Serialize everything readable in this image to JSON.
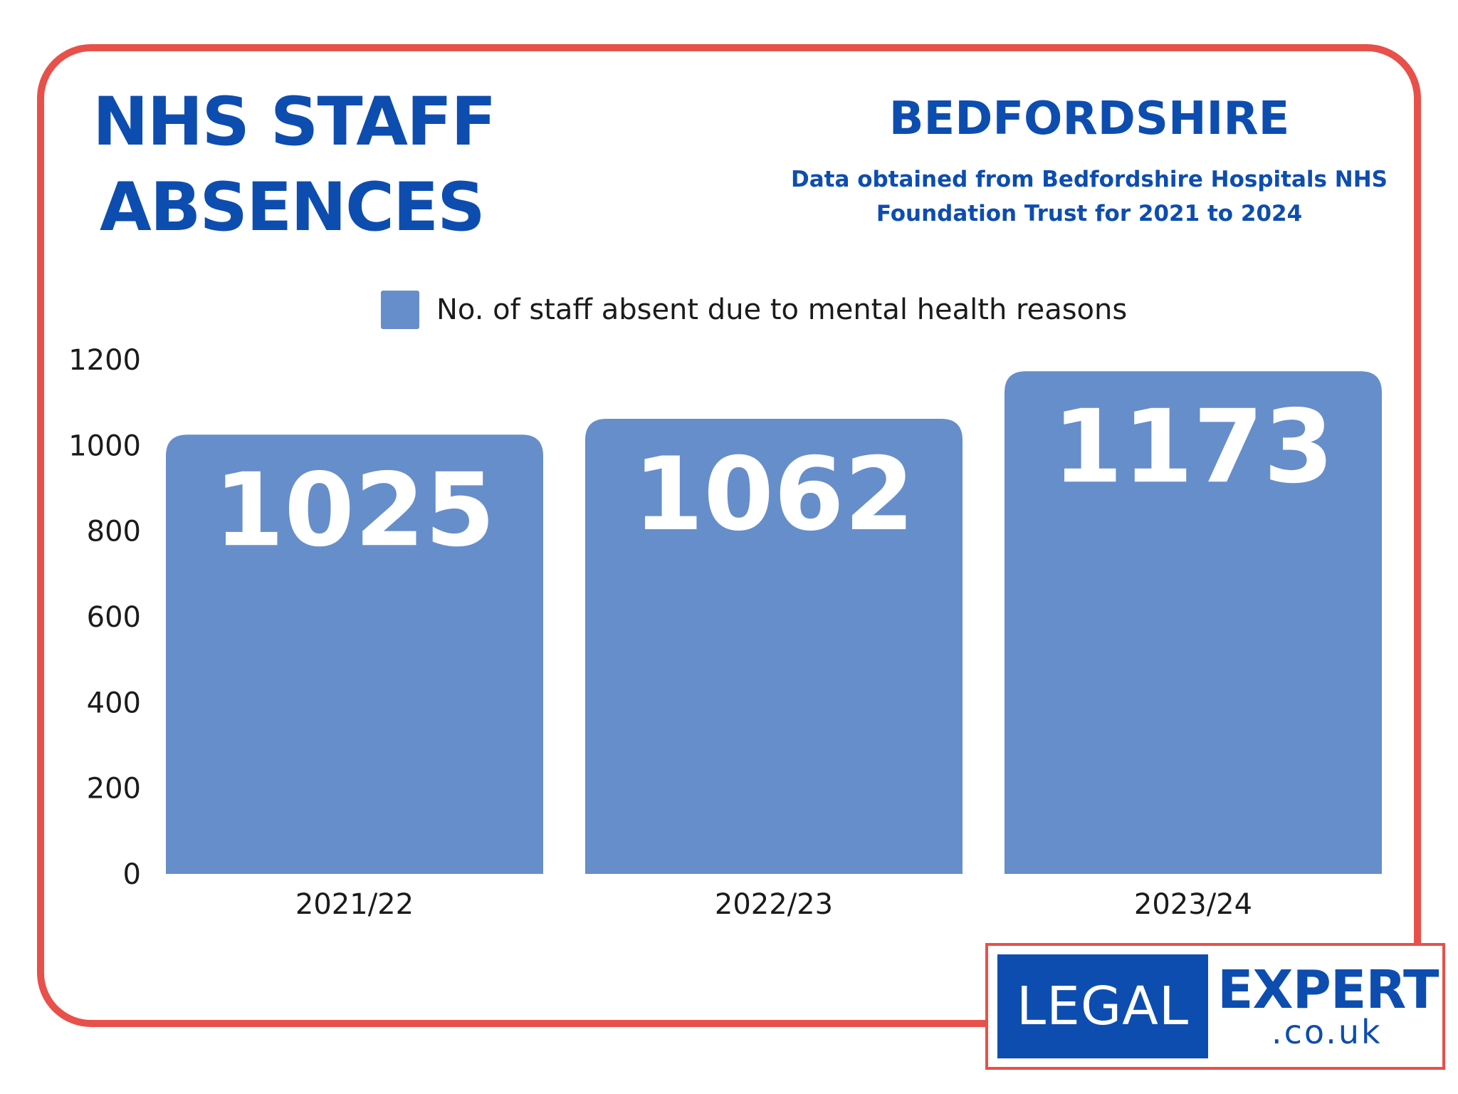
{
  "header": {
    "title_line1": "NHS STAFF",
    "title_line2": "ABSENCES",
    "region": "BEDFORDSHIRE",
    "source_line1": "Data obtained from Bedfordshire Hospitals NHS",
    "source_line2": "Foundation Trust for 2021 to 2024"
  },
  "colors": {
    "accent_blue": "#0d4db0",
    "bar_blue": "#668ecb",
    "frame_red": "#e8504a",
    "value_label": "#ffffff"
  },
  "logo": {
    "left_text": "LEGAL",
    "right_text": "EXPERT",
    "domain": ".co.uk"
  },
  "chart_data": {
    "type": "bar",
    "categories": [
      "2021/22",
      "2022/23",
      "2023/24"
    ],
    "series": [
      {
        "name": "No. of staff absent due to mental health reasons",
        "values": [
          1025,
          1062,
          1173
        ]
      }
    ],
    "data_labels": [
      "1025",
      "1062",
      "1173"
    ],
    "ylim": [
      0,
      1200
    ],
    "yticks": [
      0,
      200,
      400,
      600,
      800,
      1000,
      1200
    ],
    "grid": false,
    "legend_position": "top-center",
    "xlabel": "",
    "ylabel": ""
  }
}
